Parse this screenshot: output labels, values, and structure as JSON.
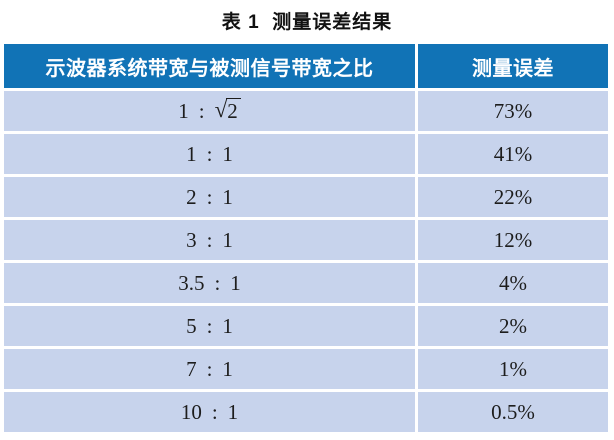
{
  "title": "表 1  测量误差结果",
  "colors": {
    "header_bg": "#1173b6",
    "header_text": "#ffffff",
    "row_bg": "#c7d3ec",
    "body_text": "#1d1d1d"
  },
  "table": {
    "colon": ":",
    "headers": [
      "示波器系统带宽与被测信号带宽之比",
      "测量误差"
    ],
    "rows": [
      {
        "left": "1",
        "radical": "√",
        "right": "2",
        "error": "73%"
      },
      {
        "left": "1",
        "right": "1",
        "error": "41%"
      },
      {
        "left": "2",
        "right": "1",
        "error": "22%"
      },
      {
        "left": "3",
        "right": "1",
        "error": "12%"
      },
      {
        "left": "3.5",
        "right": "1",
        "error": "4%"
      },
      {
        "left": "5",
        "right": "1",
        "error": "2%"
      },
      {
        "left": "7",
        "right": "1",
        "error": "1%"
      },
      {
        "left": "10",
        "right": "1",
        "error": "0.5%"
      }
    ]
  },
  "chart_data": {
    "type": "table",
    "title": "表 1 测量误差结果",
    "columns": [
      "示波器系统带宽与被测信号带宽之比",
      "测量误差"
    ],
    "rows": [
      [
        "1 : √2",
        "73%"
      ],
      [
        "1 : 1",
        "41%"
      ],
      [
        "2 : 1",
        "22%"
      ],
      [
        "3 : 1",
        "12%"
      ],
      [
        "3.5 : 1",
        "4%"
      ],
      [
        "5 : 1",
        "2%"
      ],
      [
        "7 : 1",
        "1%"
      ],
      [
        "10 : 1",
        "0.5%"
      ]
    ]
  }
}
